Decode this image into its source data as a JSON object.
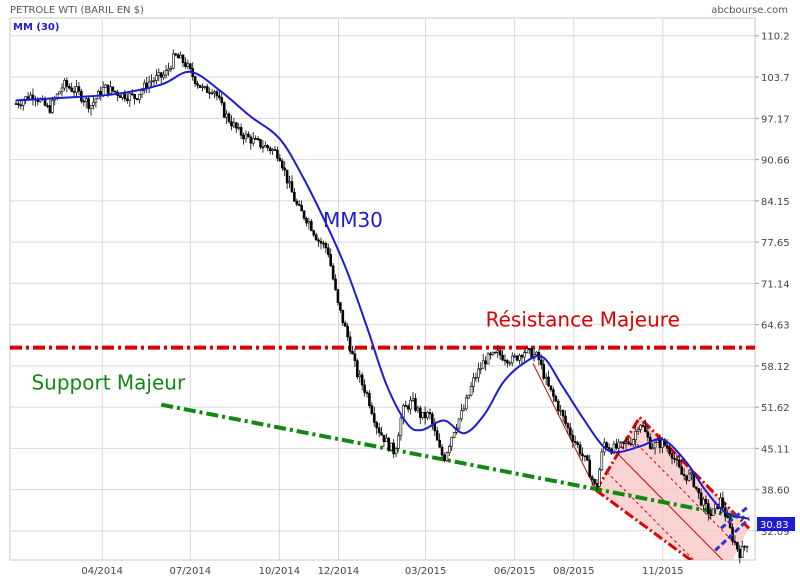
{
  "header": {
    "title": "PETROLE WTI (BARIL EN $)",
    "legend": "MM (30)",
    "brand": "abcbourse.com"
  },
  "colors": {
    "candle": "#000000",
    "ma": "#1c1cd6",
    "resistance": "#dd0000",
    "support": "#118811",
    "channel_fill": "#f8c4c4",
    "channel_edge": "#dd0000",
    "mini_channel": "#3333cc",
    "price_tag": "#1c1cd6",
    "grid": "#d8d8d8"
  },
  "chart_data": {
    "type": "candlestick",
    "title": "PETROLE WTI (BARIL EN $)",
    "ylim": [
      27.5,
      113.0
    ],
    "y_ticks": [
      "110.2",
      "103.7",
      "97.17",
      "90.66",
      "84.15",
      "77.65",
      "71.14",
      "64.63",
      "58.12",
      "51.62",
      "45.11",
      "38.60",
      "32.09"
    ],
    "x_ticks": [
      "04/2014",
      "07/2014",
      "10/2014",
      "12/2014",
      "03/2015",
      "06/2015",
      "08/2015",
      "11/2015"
    ],
    "x_start": "2014-01-02",
    "x_end": "2016-01-29",
    "last_price": "30.83",
    "series": [
      {
        "name": "PETROLE WTI",
        "points": [
          [
            "2014-01-02",
            99.5
          ],
          [
            "2014-01-20",
            101.0
          ],
          [
            "2014-02-05",
            98.5
          ],
          [
            "2014-02-20",
            102.5
          ],
          [
            "2014-03-05",
            101.5
          ],
          [
            "2014-03-20",
            99.2
          ],
          [
            "2014-04-03",
            102.0
          ],
          [
            "2014-04-20",
            101.0
          ],
          [
            "2014-05-05",
            100.5
          ],
          [
            "2014-05-20",
            103.0
          ],
          [
            "2014-06-05",
            104.0
          ],
          [
            "2014-06-15",
            107.0
          ],
          [
            "2014-06-25",
            106.0
          ],
          [
            "2014-07-05",
            103.5
          ],
          [
            "2014-07-15",
            101.5
          ],
          [
            "2014-07-25",
            102.0
          ],
          [
            "2014-08-05",
            98.0
          ],
          [
            "2014-08-20",
            95.0
          ],
          [
            "2014-09-05",
            93.5
          ],
          [
            "2014-09-20",
            92.5
          ],
          [
            "2014-10-01",
            91.5
          ],
          [
            "2014-10-10",
            87.0
          ],
          [
            "2014-10-20",
            83.0
          ],
          [
            "2014-10-31",
            81.0
          ],
          [
            "2014-11-10",
            78.0
          ],
          [
            "2014-11-20",
            76.5
          ],
          [
            "2014-11-30",
            68.0
          ],
          [
            "2014-12-10",
            63.0
          ],
          [
            "2014-12-20",
            57.0
          ],
          [
            "2014-12-31",
            53.5
          ],
          [
            "2015-01-10",
            48.5
          ],
          [
            "2015-01-20",
            46.0
          ],
          [
            "2015-01-28",
            44.5
          ],
          [
            "2015-02-05",
            51.0
          ],
          [
            "2015-02-15",
            52.5
          ],
          [
            "2015-02-25",
            50.0
          ],
          [
            "2015-03-05",
            50.5
          ],
          [
            "2015-03-15",
            45.0
          ],
          [
            "2015-03-20",
            43.5
          ],
          [
            "2015-03-30",
            48.0
          ],
          [
            "2015-04-10",
            51.5
          ],
          [
            "2015-04-20",
            56.0
          ],
          [
            "2015-05-01",
            59.0
          ],
          [
            "2015-05-15",
            60.0
          ],
          [
            "2015-05-30",
            59.0
          ],
          [
            "2015-06-10",
            60.5
          ],
          [
            "2015-06-25",
            59.5
          ],
          [
            "2015-07-05",
            55.0
          ],
          [
            "2015-07-15",
            52.0
          ],
          [
            "2015-07-25",
            48.5
          ],
          [
            "2015-08-05",
            45.5
          ],
          [
            "2015-08-15",
            42.5
          ],
          [
            "2015-08-24",
            38.5
          ],
          [
            "2015-09-01",
            46.0
          ],
          [
            "2015-09-10",
            45.0
          ],
          [
            "2015-09-20",
            45.5
          ],
          [
            "2015-10-01",
            46.5
          ],
          [
            "2015-10-08",
            49.5
          ],
          [
            "2015-10-20",
            45.5
          ],
          [
            "2015-11-01",
            46.0
          ],
          [
            "2015-11-10",
            44.5
          ],
          [
            "2015-11-20",
            41.0
          ],
          [
            "2015-12-01",
            40.5
          ],
          [
            "2015-12-10",
            37.0
          ],
          [
            "2015-12-21",
            34.5
          ],
          [
            "2015-12-31",
            37.0
          ],
          [
            "2016-01-12",
            31.0
          ],
          [
            "2016-01-20",
            28.5
          ],
          [
            "2016-01-29",
            30.83
          ]
        ]
      },
      {
        "name": "MM (30)",
        "points": [
          [
            "2014-01-02",
            100.0
          ],
          [
            "2014-03-01",
            100.5
          ],
          [
            "2014-04-15",
            101.0
          ],
          [
            "2014-06-01",
            102.5
          ],
          [
            "2014-07-01",
            104.5
          ],
          [
            "2014-08-01",
            101.5
          ],
          [
            "2014-09-01",
            97.5
          ],
          [
            "2014-10-01",
            94.0
          ],
          [
            "2014-10-25",
            88.0
          ],
          [
            "2014-11-20",
            80.0
          ],
          [
            "2014-12-10",
            73.0
          ],
          [
            "2014-12-31",
            64.0
          ],
          [
            "2015-01-20",
            55.0
          ],
          [
            "2015-02-10",
            49.0
          ],
          [
            "2015-02-25",
            48.0
          ],
          [
            "2015-03-20",
            49.5
          ],
          [
            "2015-04-10",
            47.5
          ],
          [
            "2015-05-01",
            50.5
          ],
          [
            "2015-05-20",
            55.5
          ],
          [
            "2015-06-10",
            58.5
          ],
          [
            "2015-06-30",
            59.5
          ],
          [
            "2015-07-20",
            55.0
          ],
          [
            "2015-08-10",
            50.0
          ],
          [
            "2015-08-31",
            45.5
          ],
          [
            "2015-09-15",
            44.5
          ],
          [
            "2015-10-10",
            45.5
          ],
          [
            "2015-11-01",
            46.5
          ],
          [
            "2015-11-25",
            43.0
          ],
          [
            "2015-12-15",
            38.5
          ],
          [
            "2016-01-05",
            35.0
          ],
          [
            "2016-01-29",
            34.0
          ]
        ]
      }
    ],
    "annotations": [
      {
        "label": "MM30",
        "color": "#1c1cd6",
        "at": [
          "2014-11-15",
          80.0
        ]
      },
      {
        "label": "Résistance Majeure",
        "color": "#dd0000",
        "level": 61.0,
        "at": [
          "2015-05-02",
          64.3
        ]
      },
      {
        "label": "Support Majeur",
        "color": "#118811",
        "at": [
          "2014-01-18",
          54.4
        ]
      }
    ],
    "support_line": [
      [
        "2014-06-01",
        52.0
      ],
      [
        "2016-01-29",
        34.0
      ]
    ],
    "channel": {
      "upper": [
        [
          "2015-08-24",
          38.5
        ],
        [
          "2015-10-08",
          50.0
        ],
        [
          "2016-01-29",
          32.5
        ]
      ],
      "lower": [
        [
          "2015-06-20",
          58.5
        ],
        [
          "2015-08-24",
          38.5
        ],
        [
          "2015-12-31",
          24.0
        ]
      ]
    },
    "mini_channel": {
      "lines": [
        [
          [
            "2015-12-25",
            29.0
          ],
          [
            "2016-01-29",
            34.0
          ]
        ],
        [
          [
            "2015-12-31",
            32.5
          ],
          [
            "2016-01-29",
            36.0
          ]
        ]
      ]
    }
  }
}
